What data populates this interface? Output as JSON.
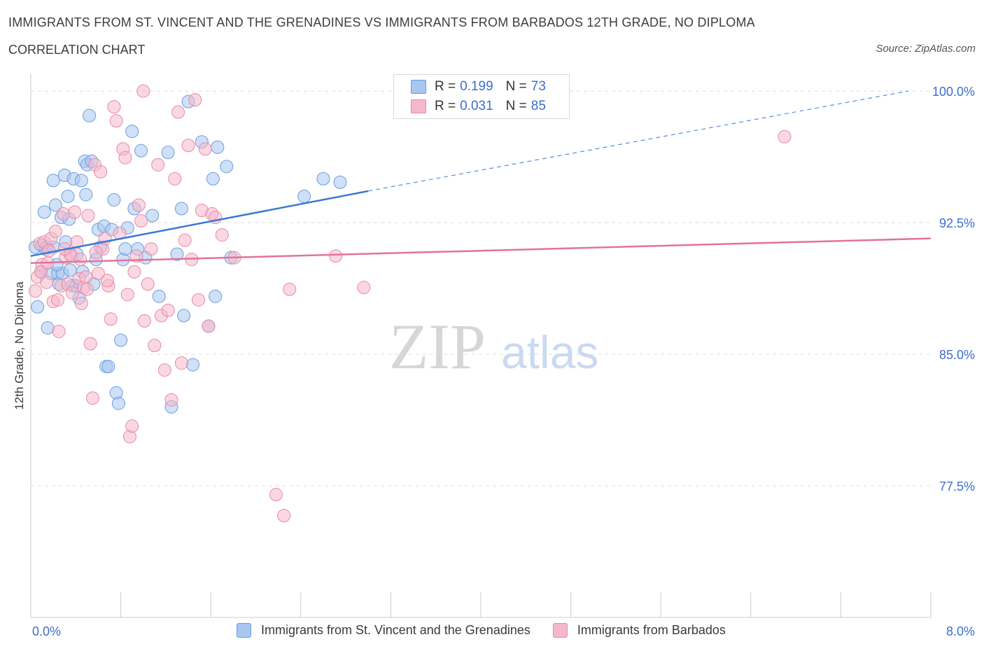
{
  "header": {
    "title": "IMMIGRANTS FROM ST. VINCENT AND THE GRENADINES VS IMMIGRANTS FROM BARBADOS 12TH GRADE, NO DIPLOMA",
    "subtitle": "CORRELATION CHART",
    "source": "Source: ZipAtlas.com"
  },
  "legend": {
    "r_label": "R =",
    "n_label": "N =",
    "rows": [
      {
        "r": "0.199",
        "n": "73",
        "color": "#a8c6f0"
      },
      {
        "r": "0.031",
        "n": "85",
        "color": "#f5b8cb"
      }
    ]
  },
  "watermark": {
    "zip": "ZIP",
    "atlas": "atlas"
  },
  "bottom_legend": {
    "items": [
      {
        "label": "Immigrants from St. Vincent and the Grenadines",
        "color": "#a8c6f0"
      },
      {
        "label": "Immigrants from Barbados",
        "color": "#f5b8cb"
      }
    ]
  },
  "chart_data": {
    "type": "scatter",
    "ylabel": "12th Grade, No Diploma",
    "xlim": [
      0.0,
      8.0
    ],
    "ylim": [
      70.0,
      101.0
    ],
    "x_tick_labels": [
      "0.0%",
      "8.0%"
    ],
    "y_ticks": [
      77.5,
      85.0,
      92.5,
      100.0
    ],
    "y_tick_labels": [
      "77.5%",
      "85.0%",
      "92.5%",
      "100.0%"
    ],
    "grid": true,
    "colors": {
      "blue": "#3a78d4",
      "pink": "#e2739b",
      "blue_fill": "#a8c6f0",
      "pink_fill": "#f5b8cb",
      "tick_label": "#3b6fd0"
    },
    "series": [
      {
        "name": "Immigrants from St. Vincent and the Grenadines",
        "color": "#3a78d4",
        "trend": {
          "x": [
            0.0,
            3.0
          ],
          "y": [
            90.6,
            94.3
          ],
          "dashed_to": [
            7.8,
            100.0
          ]
        },
        "points": [
          [
            0.04,
            91.1
          ],
          [
            0.06,
            87.7
          ],
          [
            0.09,
            89.7
          ],
          [
            0.1,
            91.2
          ],
          [
            0.12,
            93.1
          ],
          [
            0.14,
            91.1
          ],
          [
            0.15,
            86.5
          ],
          [
            0.18,
            89.6
          ],
          [
            0.2,
            94.9
          ],
          [
            0.22,
            93.5
          ],
          [
            0.24,
            89.6
          ],
          [
            0.25,
            89.0
          ],
          [
            0.27,
            92.8
          ],
          [
            0.28,
            89.6
          ],
          [
            0.3,
            95.2
          ],
          [
            0.31,
            91.4
          ],
          [
            0.33,
            94.0
          ],
          [
            0.34,
            92.7
          ],
          [
            0.35,
            89.8
          ],
          [
            0.37,
            88.9
          ],
          [
            0.38,
            95.0
          ],
          [
            0.4,
            88.9
          ],
          [
            0.41,
            90.7
          ],
          [
            0.43,
            88.2
          ],
          [
            0.45,
            94.9
          ],
          [
            0.46,
            89.7
          ],
          [
            0.48,
            96.0
          ],
          [
            0.49,
            94.1
          ],
          [
            0.5,
            95.8
          ],
          [
            0.52,
            98.6
          ],
          [
            0.54,
            96.0
          ],
          [
            0.56,
            89.0
          ],
          [
            0.58,
            90.4
          ],
          [
            0.6,
            92.1
          ],
          [
            0.62,
            91.1
          ],
          [
            0.65,
            92.3
          ],
          [
            0.67,
            84.3
          ],
          [
            0.69,
            84.3
          ],
          [
            0.72,
            92.1
          ],
          [
            0.74,
            93.8
          ],
          [
            0.76,
            82.8
          ],
          [
            0.78,
            82.2
          ],
          [
            0.8,
            85.8
          ],
          [
            0.82,
            90.4
          ],
          [
            0.84,
            91.0
          ],
          [
            0.86,
            92.2
          ],
          [
            0.9,
            97.7
          ],
          [
            0.92,
            93.3
          ],
          [
            0.95,
            91.0
          ],
          [
            0.98,
            96.6
          ],
          [
            1.02,
            90.5
          ],
          [
            1.08,
            92.9
          ],
          [
            1.14,
            88.3
          ],
          [
            1.22,
            96.5
          ],
          [
            1.25,
            82.0
          ],
          [
            1.3,
            90.7
          ],
          [
            1.34,
            93.3
          ],
          [
            1.36,
            87.2
          ],
          [
            1.4,
            99.4
          ],
          [
            1.44,
            84.4
          ],
          [
            1.52,
            97.1
          ],
          [
            1.58,
            86.6
          ],
          [
            1.62,
            95.0
          ],
          [
            1.64,
            88.3
          ],
          [
            1.66,
            96.8
          ],
          [
            1.74,
            95.7
          ],
          [
            1.78,
            90.5
          ],
          [
            2.43,
            94.0
          ],
          [
            2.6,
            95.0
          ],
          [
            2.75,
            94.8
          ],
          [
            0.13,
            91.0
          ],
          [
            0.23,
            90.1
          ],
          [
            0.2,
            91.1
          ]
        ]
      },
      {
        "name": "Immigrants from Barbados",
        "color": "#e2739b",
        "trend": {
          "x": [
            0.0,
            8.0
          ],
          "y": [
            90.2,
            91.6
          ]
        },
        "points": [
          [
            0.04,
            88.6
          ],
          [
            0.06,
            89.4
          ],
          [
            0.08,
            91.3
          ],
          [
            0.1,
            90.1
          ],
          [
            0.12,
            91.4
          ],
          [
            0.14,
            89.1
          ],
          [
            0.16,
            90.9
          ],
          [
            0.18,
            91.6
          ],
          [
            0.2,
            88.0
          ],
          [
            0.22,
            92.0
          ],
          [
            0.25,
            86.3
          ],
          [
            0.27,
            88.9
          ],
          [
            0.29,
            93.0
          ],
          [
            0.31,
            90.5
          ],
          [
            0.33,
            89.0
          ],
          [
            0.35,
            90.7
          ],
          [
            0.37,
            88.5
          ],
          [
            0.39,
            93.1
          ],
          [
            0.41,
            91.4
          ],
          [
            0.43,
            89.3
          ],
          [
            0.45,
            87.9
          ],
          [
            0.47,
            88.8
          ],
          [
            0.49,
            89.4
          ],
          [
            0.51,
            92.9
          ],
          [
            0.53,
            85.6
          ],
          [
            0.55,
            82.5
          ],
          [
            0.57,
            95.8
          ],
          [
            0.6,
            89.6
          ],
          [
            0.62,
            95.4
          ],
          [
            0.64,
            91.0
          ],
          [
            0.66,
            91.6
          ],
          [
            0.69,
            88.9
          ],
          [
            0.71,
            87.0
          ],
          [
            0.74,
            99.1
          ],
          [
            0.76,
            98.3
          ],
          [
            0.79,
            91.9
          ],
          [
            0.82,
            96.7
          ],
          [
            0.84,
            96.2
          ],
          [
            0.86,
            88.4
          ],
          [
            0.88,
            80.3
          ],
          [
            0.9,
            80.9
          ],
          [
            0.92,
            89.7
          ],
          [
            0.94,
            90.6
          ],
          [
            0.96,
            93.5
          ],
          [
            0.98,
            92.6
          ],
          [
            1.01,
            86.9
          ],
          [
            1.04,
            89.0
          ],
          [
            1.07,
            91.0
          ],
          [
            1.1,
            85.5
          ],
          [
            1.13,
            95.8
          ],
          [
            1.16,
            87.2
          ],
          [
            1.19,
            84.1
          ],
          [
            1.22,
            87.5
          ],
          [
            1.25,
            82.4
          ],
          [
            1.28,
            95.0
          ],
          [
            1.31,
            98.8
          ],
          [
            1.34,
            84.5
          ],
          [
            1.37,
            91.5
          ],
          [
            1.4,
            96.9
          ],
          [
            1.43,
            90.4
          ],
          [
            1.46,
            99.5
          ],
          [
            1.49,
            88.1
          ],
          [
            1.52,
            93.2
          ],
          [
            1.55,
            96.7
          ],
          [
            1.58,
            86.6
          ],
          [
            1.61,
            93.0
          ],
          [
            1.64,
            92.8
          ],
          [
            1.7,
            91.8
          ],
          [
            1.81,
            90.5
          ],
          [
            2.18,
            77.0
          ],
          [
            2.25,
            75.8
          ],
          [
            2.3,
            88.7
          ],
          [
            2.71,
            90.6
          ],
          [
            2.96,
            88.8
          ],
          [
            6.7,
            97.4
          ],
          [
            0.36,
            90.6
          ],
          [
            0.44,
            90.4
          ],
          [
            0.58,
            90.8
          ],
          [
            0.68,
            89.2
          ],
          [
            0.09,
            89.7
          ],
          [
            0.15,
            90.2
          ],
          [
            0.24,
            88.1
          ],
          [
            0.3,
            91.0
          ],
          [
            1.0,
            100.0
          ],
          [
            0.5,
            88.7
          ]
        ]
      }
    ]
  }
}
